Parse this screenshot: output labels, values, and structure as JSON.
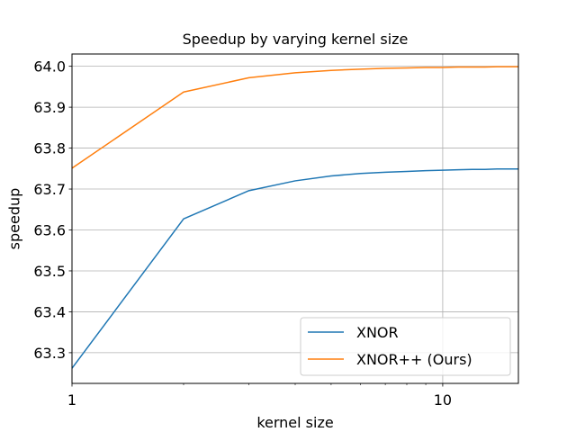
{
  "chart_data": {
    "type": "line",
    "title": "Speedup by varying kernel size",
    "xlabel": "kernel size",
    "ylabel": "speedup",
    "xscale": "log",
    "xlim": [
      1,
      16
    ],
    "ylim": [
      63.225,
      64.03
    ],
    "x_major_ticks": [
      1,
      10
    ],
    "x_major_tick_labels": [
      "1",
      "10"
    ],
    "x_minor_ticks": [
      2,
      3,
      4,
      5,
      6,
      7,
      8,
      9
    ],
    "y_ticks": [
      63.3,
      63.4,
      63.5,
      63.6,
      63.7,
      63.8,
      63.9,
      64.0
    ],
    "y_tick_labels": [
      "63.3",
      "63.4",
      "63.5",
      "63.6",
      "63.7",
      "63.8",
      "63.9",
      "64.0"
    ],
    "grid": true,
    "legend_position": "bottom-right",
    "x": [
      1,
      2,
      3,
      4,
      5,
      6,
      7,
      8,
      9,
      10,
      11,
      12,
      13,
      14,
      15,
      16
    ],
    "series": [
      {
        "name": "XNOR",
        "color": "#1f77b4",
        "values": [
          63.262,
          63.627,
          63.696,
          63.72,
          63.732,
          63.738,
          63.741,
          63.743,
          63.745,
          63.746,
          63.747,
          63.748,
          63.748,
          63.749,
          63.749,
          63.749
        ]
      },
      {
        "name": "XNOR++ (Ours)",
        "color": "#ff7f0e",
        "values": [
          63.751,
          63.937,
          63.972,
          63.984,
          63.99,
          63.993,
          63.995,
          63.996,
          63.997,
          63.997,
          63.998,
          63.998,
          63.998,
          63.999,
          63.999,
          63.999
        ]
      }
    ]
  }
}
